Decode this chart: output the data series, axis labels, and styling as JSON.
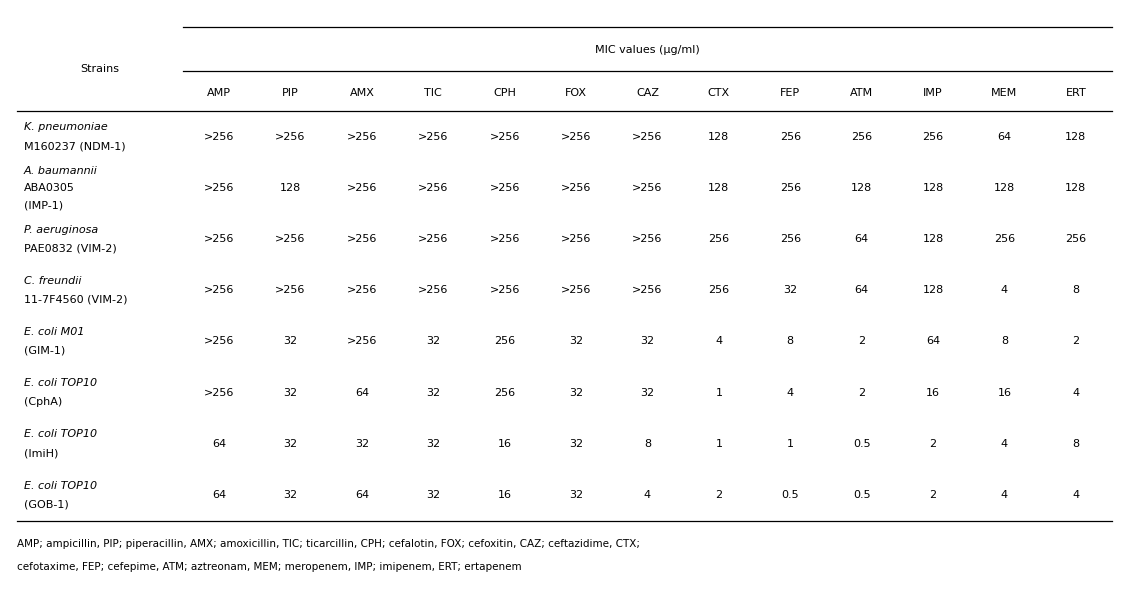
{
  "title": "MIC values (μg/ml)",
  "col_headers": [
    "AMP",
    "PIP",
    "AMX",
    "TIC",
    "CPH",
    "FOX",
    "CAZ",
    "CTX",
    "FEP",
    "ATM",
    "IMP",
    "MEM",
    "ERT"
  ],
  "row_labels": [
    [
      [
        "K. pneumoniae",
        true
      ],
      [
        "M160237 (NDM-1)",
        false
      ]
    ],
    [
      [
        "A. baumannii",
        true
      ],
      [
        "ABA0305",
        false
      ],
      [
        "(IMP-1)",
        false
      ]
    ],
    [
      [
        "P. aeruginosa",
        true
      ],
      [
        "PAE0832 (VIM-2)",
        false
      ]
    ],
    [
      [
        "C. freundii",
        true
      ],
      [
        "11-7F4560 (VIM-2)",
        false
      ]
    ],
    [
      [
        "E. coli",
        true
      ],
      [
        " M01",
        false
      ],
      [
        "(GIM-1)",
        false
      ]
    ],
    [
      [
        "E. coli",
        true
      ],
      [
        " TOP10",
        false
      ],
      [
        "(CphA)",
        false
      ]
    ],
    [
      [
        "E. coli",
        true
      ],
      [
        " TOP10",
        false
      ],
      [
        "(ImiH)",
        false
      ]
    ],
    [
      [
        "E. coli",
        true
      ],
      [
        " TOP10",
        false
      ],
      [
        "(GOB-1)",
        false
      ]
    ]
  ],
  "data": [
    [
      ">256",
      ">256",
      ">256",
      ">256",
      ">256",
      ">256",
      ">256",
      "128",
      "256",
      "256",
      "256",
      "64",
      "128"
    ],
    [
      ">256",
      "128",
      ">256",
      ">256",
      ">256",
      ">256",
      ">256",
      "128",
      "256",
      "128",
      "128",
      "128",
      "128"
    ],
    [
      ">256",
      ">256",
      ">256",
      ">256",
      ">256",
      ">256",
      ">256",
      "256",
      "256",
      "64",
      "128",
      "256",
      "256"
    ],
    [
      ">256",
      ">256",
      ">256",
      ">256",
      ">256",
      ">256",
      ">256",
      "256",
      "32",
      "64",
      "128",
      "4",
      "8"
    ],
    [
      ">256",
      "32",
      ">256",
      "32",
      "256",
      "32",
      "32",
      "4",
      "8",
      "2",
      "64",
      "8",
      "2"
    ],
    [
      ">256",
      "32",
      "64",
      "32",
      "256",
      "32",
      "32",
      "1",
      "4",
      "2",
      "16",
      "16",
      "4"
    ],
    [
      "64",
      "32",
      "32",
      "32",
      "16",
      "32",
      "8",
      "1",
      "1",
      "0.5",
      "2",
      "4",
      "8"
    ],
    [
      "64",
      "32",
      "64",
      "32",
      "16",
      "32",
      "4",
      "2",
      "0.5",
      "0.5",
      "2",
      "4",
      "4"
    ]
  ],
  "row_label_display": [
    {
      "line1": "K. pneumoniae",
      "line1_italic": true,
      "line2": "M160237 (NDM-1)",
      "line2_italic": false,
      "line3": null,
      "nlines": 2
    },
    {
      "line1": "A. baumannii",
      "line1_italic": true,
      "line2": "ABA0305",
      "line2_italic": false,
      "line3": "(IMP-1)",
      "line3_italic": false,
      "nlines": 3
    },
    {
      "line1": "P. aeruginosa",
      "line1_italic": true,
      "line2": "PAE0832 (VIM-2)",
      "line2_italic": false,
      "line3": null,
      "nlines": 2
    },
    {
      "line1": "C. freundii",
      "line1_italic": true,
      "line2": "11-7F4560 (VIM-2)",
      "line2_italic": false,
      "line3": null,
      "nlines": 2
    },
    {
      "line1": "E. coli M01",
      "line1_italic": true,
      "line2": "(GIM-1)",
      "line2_italic": false,
      "line3": null,
      "nlines": 2
    },
    {
      "line1": "E. coli TOP10",
      "line1_italic": true,
      "line2": "(CphA)",
      "line2_italic": false,
      "line3": null,
      "nlines": 2
    },
    {
      "line1": "E. coli TOP10",
      "line1_italic": true,
      "line2": "(ImiH)",
      "line2_italic": false,
      "line3": null,
      "nlines": 2
    },
    {
      "line1": "E. coli TOP10",
      "line1_italic": true,
      "line2": "(GOB-1)",
      "line2_italic": false,
      "line3": null,
      "nlines": 2
    }
  ],
  "footnote_line1": "AMP; ampicillin, PIP; piperacillin, AMX; amoxicillin, TIC; ticarcillin, CPH; cefalotin, FOX; cefoxitin, CAZ; ceftazidime, CTX;",
  "footnote_line2": "cefotaxime, FEP; cefepime, ATM; aztreonam, MEM; meropenem, IMP; imipenem, ERT; ertapenem",
  "bg_color": "#ffffff",
  "text_color": "#000000",
  "font_size": 8.0,
  "strains_label": "Strains"
}
